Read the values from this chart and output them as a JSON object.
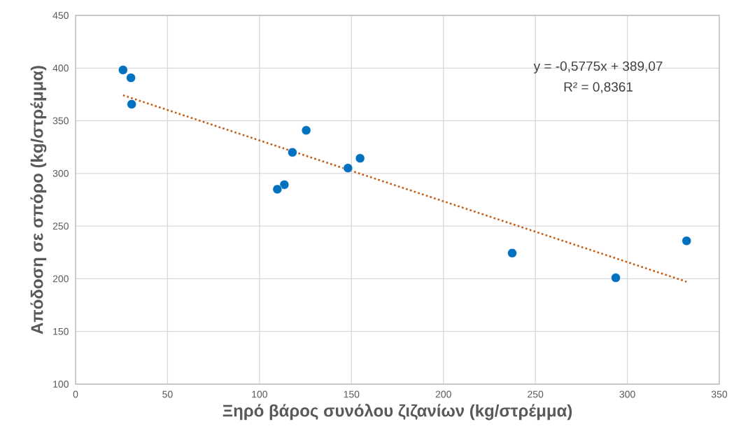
{
  "chart_data": {
    "type": "scatter",
    "xlabel": "Ξηρό βάρος συνόλου ζιζανίων (kg/στρέμμα)",
    "ylabel": "Απόδοση σε σπόρο (kg/στρέμμα)",
    "xlim": [
      0,
      350
    ],
    "ylim": [
      100,
      450
    ],
    "xticks": [
      0,
      50,
      100,
      150,
      200,
      250,
      300,
      350
    ],
    "yticks": [
      100,
      150,
      200,
      250,
      300,
      350,
      400,
      450
    ],
    "grid": true,
    "series": [
      {
        "color": "#0070c0",
        "marker": "circle",
        "x": [
          25.8,
          30.1,
          30.5,
          125.4,
          117.9,
          154.7,
          148.1,
          113.5,
          109.7,
          237.4,
          293.7,
          332.2
        ],
        "values": [
          398.2,
          390.8,
          365.7,
          340.9,
          320.0,
          314.4,
          305.1,
          289.3,
          285.0,
          224.4,
          200.9,
          236.0
        ]
      },
      {
        "type": "line",
        "color": "#c55a11",
        "line_style": "dotted",
        "marker": "none",
        "x": [
          25.8,
          332.2
        ],
        "values": [
          374.2,
          197.2
        ]
      }
    ],
    "annotations": [
      "y = -0,5775x + 389,07",
      "R² = 0,8361"
    ]
  }
}
